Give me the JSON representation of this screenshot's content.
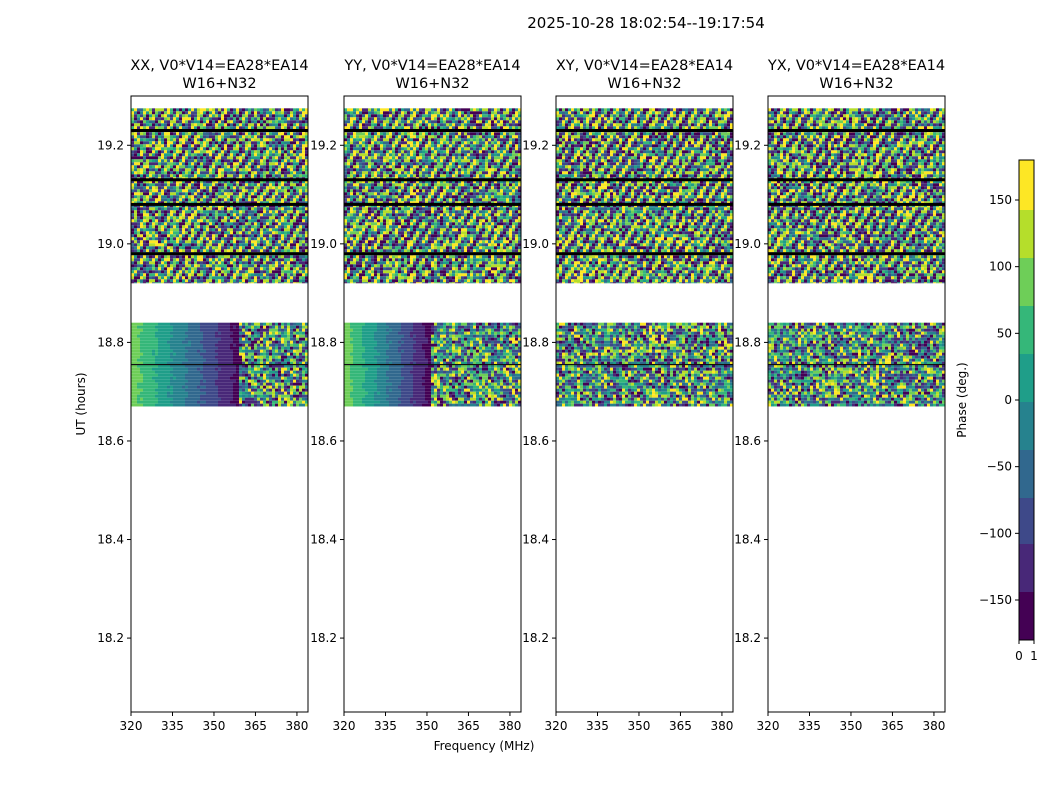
{
  "figure": {
    "suptitle": "2025-10-28  18:02:54--19:17:54"
  },
  "chart_data": {
    "type": "heatmap",
    "xlabel": "Frequency (MHz)",
    "ylabel": "UT (hours)",
    "xlim": [
      320,
      384
    ],
    "ylim": [
      18.05,
      19.3
    ],
    "xticks": [
      320,
      335,
      350,
      365,
      380
    ],
    "yticks": [
      18.2,
      18.4,
      18.6,
      18.8,
      19.0,
      19.2
    ],
    "data_blocks_ut": [
      [
        18.67,
        18.84
      ],
      [
        18.92,
        19.275
      ]
    ],
    "flagged_rows_ut": [
      19.23,
      19.13,
      19.08,
      18.98
    ],
    "panels": [
      {
        "title_line1": "XX, V0*V14=EA28*EA14",
        "title_line2": "W16+N32",
        "low_block": {
          "style": "gradient",
          "wrap_freq": 359
        }
      },
      {
        "title_line1": "YY, V0*V14=EA28*EA14",
        "title_line2": "W16+N32",
        "low_block": {
          "style": "gradient",
          "wrap_freq": 351
        }
      },
      {
        "title_line1": "XY, V0*V14=EA28*EA14",
        "title_line2": "W16+N32",
        "low_block": {
          "style": "noise"
        }
      },
      {
        "title_line1": "YX, V0*V14=EA28*EA14",
        "title_line2": "W16+N32",
        "low_block": {
          "style": "noise"
        }
      }
    ],
    "colorbar": {
      "label": "Phase (deg.)",
      "range": [
        -180,
        180
      ],
      "ticks": [
        150,
        100,
        50,
        0,
        -50,
        -100,
        -150
      ],
      "bottom_ticks": [
        "0",
        "1"
      ],
      "colormap": "viridis",
      "colors": [
        "#440154",
        "#482878",
        "#3e4989",
        "#31688e",
        "#26828e",
        "#1f9e89",
        "#35b779",
        "#6ece58",
        "#b5de2b",
        "#fde725"
      ]
    }
  }
}
